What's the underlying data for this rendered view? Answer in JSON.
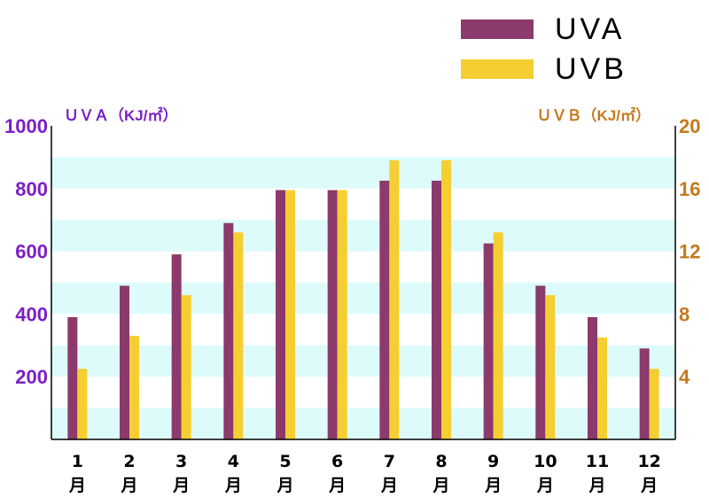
{
  "chart_data": {
    "type": "bar",
    "categories": [
      "1\n月",
      "2\n月",
      "3\n月",
      "4\n月",
      "5\n月",
      "6\n月",
      "7\n月",
      "8\n月",
      "9\n月",
      "10\n月",
      "11\n月",
      "12\n月"
    ],
    "series": [
      {
        "name": "UVA",
        "axis": "left",
        "color": "#8B3A6B",
        "values": [
          390,
          490,
          590,
          690,
          795,
          795,
          825,
          825,
          625,
          490,
          390,
          290
        ]
      },
      {
        "name": "UVB",
        "axis": "right",
        "color": "#F5CE32",
        "values": [
          4.5,
          6.6,
          9.2,
          13.2,
          15.9,
          15.9,
          17.8,
          17.8,
          13.2,
          9.2,
          6.5,
          4.5
        ]
      }
    ],
    "left_axis": {
      "title": "ＵＶＡ（KJ/㎡）",
      "color": "#7B1FC4",
      "ylim": [
        0,
        1000
      ],
      "ticks": [
        200,
        400,
        600,
        800,
        1000
      ]
    },
    "right_axis": {
      "title": "ＵＶＢ（KJ/㎡）",
      "color": "#C47A1C",
      "ylim": [
        0,
        20
      ],
      "ticks": [
        4,
        8,
        12,
        16,
        20
      ]
    },
    "background_bands_color": "#DDFBFB",
    "legend_position": "top-right",
    "grid": false
  }
}
